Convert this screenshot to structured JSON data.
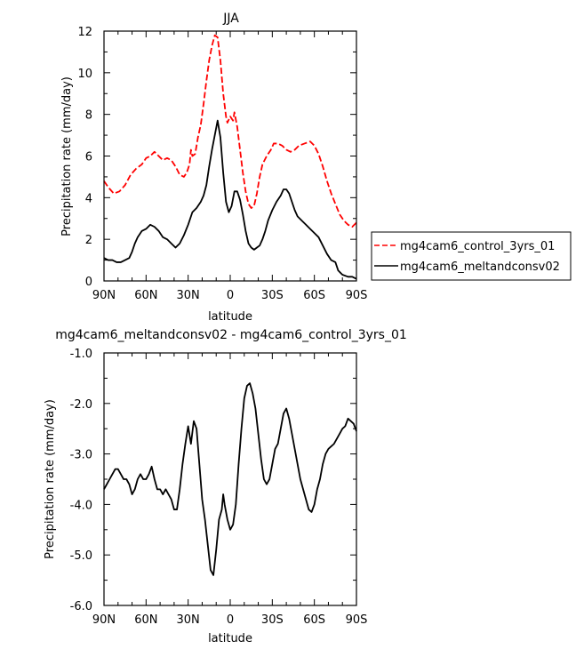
{
  "chart_data": [
    {
      "type": "line",
      "title": "JJA",
      "xlabel": "latitude",
      "ylabel": "Precipitation rate (mm/day)",
      "xlim": [
        90,
        -90
      ],
      "ylim": [
        0,
        12
      ],
      "x_ticks": [
        90,
        60,
        30,
        0,
        -30,
        -60,
        -90
      ],
      "x_tick_labels": [
        "90N",
        "60N",
        "30N",
        "0",
        "30S",
        "60S",
        "90S"
      ],
      "y_ticks": [
        0,
        2,
        4,
        6,
        8,
        10,
        12
      ],
      "y_tick_labels": [
        "0",
        "2",
        "4",
        "6",
        "8",
        "10",
        "12"
      ],
      "grid": false,
      "legend_position": "right",
      "series": [
        {
          "name": "mg4cam6_control_3yrs_01",
          "color": "#ff0000",
          "dash": "dashed",
          "points": [
            [
              90,
              4.8
            ],
            [
              87,
              4.5
            ],
            [
              83,
              4.2
            ],
            [
              79,
              4.3
            ],
            [
              75,
              4.6
            ],
            [
              71,
              5.1
            ],
            [
              67,
              5.4
            ],
            [
              63,
              5.6
            ],
            [
              60,
              5.9
            ],
            [
              57,
              6.0
            ],
            [
              54,
              6.2
            ],
            [
              51,
              6.0
            ],
            [
              48,
              5.8
            ],
            [
              45,
              5.9
            ],
            [
              42,
              5.8
            ],
            [
              39,
              5.5
            ],
            [
              36,
              5.1
            ],
            [
              33,
              5.0
            ],
            [
              31,
              5.2
            ],
            [
              29,
              5.6
            ],
            [
              28,
              6.3
            ],
            [
              27,
              6.0
            ],
            [
              25,
              6.1
            ],
            [
              23,
              6.9
            ],
            [
              21,
              7.5
            ],
            [
              19,
              8.5
            ],
            [
              17,
              9.6
            ],
            [
              15,
              10.6
            ],
            [
              13,
              11.3
            ],
            [
              11,
              11.8
            ],
            [
              9,
              11.7
            ],
            [
              7,
              10.6
            ],
            [
              5,
              9.0
            ],
            [
              3,
              7.9
            ],
            [
              2,
              7.6
            ],
            [
              0,
              7.9
            ],
            [
              -2,
              7.7
            ],
            [
              -3,
              8.1
            ],
            [
              -5,
              7.4
            ],
            [
              -7,
              6.3
            ],
            [
              -9,
              5.2
            ],
            [
              -11,
              4.3
            ],
            [
              -13,
              3.7
            ],
            [
              -15,
              3.5
            ],
            [
              -17,
              3.6
            ],
            [
              -19,
              4.2
            ],
            [
              -21,
              5.0
            ],
            [
              -23,
              5.6
            ],
            [
              -26,
              6.0
            ],
            [
              -29,
              6.3
            ],
            [
              -31,
              6.6
            ],
            [
              -34,
              6.6
            ],
            [
              -37,
              6.5
            ],
            [
              -40,
              6.3
            ],
            [
              -43,
              6.2
            ],
            [
              -46,
              6.3
            ],
            [
              -49,
              6.5
            ],
            [
              -53,
              6.6
            ],
            [
              -57,
              6.7
            ],
            [
              -60,
              6.5
            ],
            [
              -63,
              6.1
            ],
            [
              -66,
              5.5
            ],
            [
              -69,
              4.8
            ],
            [
              -72,
              4.2
            ],
            [
              -75,
              3.7
            ],
            [
              -78,
              3.2
            ],
            [
              -81,
              2.9
            ],
            [
              -84,
              2.7
            ],
            [
              -87,
              2.6
            ],
            [
              -90,
              2.8
            ]
          ]
        },
        {
          "name": "mg4cam6_meltandconsv02",
          "color": "#000000",
          "dash": "solid",
          "points": [
            [
              90,
              1.1
            ],
            [
              87,
              1.0
            ],
            [
              84,
              1.0
            ],
            [
              81,
              0.9
            ],
            [
              78,
              0.9
            ],
            [
              75,
              1.0
            ],
            [
              72,
              1.1
            ],
            [
              70,
              1.4
            ],
            [
              68,
              1.8
            ],
            [
              66,
              2.1
            ],
            [
              63,
              2.4
            ],
            [
              60,
              2.5
            ],
            [
              57,
              2.7
            ],
            [
              54,
              2.6
            ],
            [
              51,
              2.4
            ],
            [
              48,
              2.1
            ],
            [
              45,
              2.0
            ],
            [
              42,
              1.8
            ],
            [
              39,
              1.6
            ],
            [
              36,
              1.8
            ],
            [
              33,
              2.2
            ],
            [
              30,
              2.7
            ],
            [
              27,
              3.3
            ],
            [
              24,
              3.5
            ],
            [
              21,
              3.8
            ],
            [
              19,
              4.1
            ],
            [
              17,
              4.6
            ],
            [
              15,
              5.5
            ],
            [
              13,
              6.3
            ],
            [
              11,
              7.0
            ],
            [
              9,
              7.7
            ],
            [
              7,
              6.9
            ],
            [
              5,
              5.2
            ],
            [
              3,
              3.8
            ],
            [
              1,
              3.3
            ],
            [
              -1,
              3.6
            ],
            [
              -3,
              4.3
            ],
            [
              -5,
              4.3
            ],
            [
              -7,
              3.9
            ],
            [
              -9,
              3.2
            ],
            [
              -11,
              2.4
            ],
            [
              -13,
              1.8
            ],
            [
              -15,
              1.6
            ],
            [
              -17,
              1.5
            ],
            [
              -19,
              1.6
            ],
            [
              -21,
              1.7
            ],
            [
              -23,
              2.0
            ],
            [
              -25,
              2.4
            ],
            [
              -27,
              2.9
            ],
            [
              -30,
              3.4
            ],
            [
              -33,
              3.8
            ],
            [
              -36,
              4.1
            ],
            [
              -38,
              4.4
            ],
            [
              -40,
              4.4
            ],
            [
              -42,
              4.2
            ],
            [
              -44,
              3.8
            ],
            [
              -46,
              3.4
            ],
            [
              -48,
              3.1
            ],
            [
              -51,
              2.9
            ],
            [
              -54,
              2.7
            ],
            [
              -57,
              2.5
            ],
            [
              -60,
              2.3
            ],
            [
              -63,
              2.1
            ],
            [
              -66,
              1.7
            ],
            [
              -69,
              1.3
            ],
            [
              -72,
              1.0
            ],
            [
              -75,
              0.9
            ],
            [
              -77,
              0.5
            ],
            [
              -80,
              0.3
            ],
            [
              -84,
              0.2
            ],
            [
              -87,
              0.2
            ],
            [
              -90,
              0.1
            ]
          ]
        }
      ]
    },
    {
      "type": "line",
      "title": "mg4cam6_meltandconsv02 - mg4cam6_control_3yrs_01",
      "xlabel": "latitude",
      "ylabel": "Precipitation rate (mm/day)",
      "xlim": [
        90,
        -90
      ],
      "ylim": [
        -6.0,
        -1.0
      ],
      "x_ticks": [
        90,
        60,
        30,
        0,
        -30,
        -60,
        -90
      ],
      "x_tick_labels": [
        "90N",
        "60N",
        "30N",
        "0",
        "30S",
        "60S",
        "90S"
      ],
      "y_ticks": [
        -6.0,
        -5.0,
        -4.0,
        -3.0,
        -2.0,
        -1.0
      ],
      "y_tick_labels": [
        "-6.0",
        "-5.0",
        "-4.0",
        "-3.0",
        "-2.0",
        "-1.0"
      ],
      "grid": false,
      "series": [
        {
          "color": "#000000",
          "dash": "solid",
          "points": [
            [
              90,
              -3.7
            ],
            [
              88,
              -3.6
            ],
            [
              86,
              -3.5
            ],
            [
              84,
              -3.4
            ],
            [
              82,
              -3.3
            ],
            [
              80,
              -3.3
            ],
            [
              78,
              -3.4
            ],
            [
              76,
              -3.5
            ],
            [
              74,
              -3.5
            ],
            [
              72,
              -3.6
            ],
            [
              70,
              -3.8
            ],
            [
              68,
              -3.7
            ],
            [
              66,
              -3.5
            ],
            [
              64,
              -3.4
            ],
            [
              62,
              -3.5
            ],
            [
              60,
              -3.5
            ],
            [
              58,
              -3.4
            ],
            [
              56,
              -3.25
            ],
            [
              54,
              -3.5
            ],
            [
              52,
              -3.7
            ],
            [
              50,
              -3.7
            ],
            [
              48,
              -3.8
            ],
            [
              46,
              -3.7
            ],
            [
              44,
              -3.8
            ],
            [
              42,
              -3.9
            ],
            [
              40,
              -4.1
            ],
            [
              38,
              -4.1
            ],
            [
              36,
              -3.7
            ],
            [
              34,
              -3.2
            ],
            [
              32,
              -2.8
            ],
            [
              30,
              -2.45
            ],
            [
              28,
              -2.8
            ],
            [
              26,
              -2.35
            ],
            [
              24,
              -2.5
            ],
            [
              22,
              -3.2
            ],
            [
              20,
              -3.9
            ],
            [
              18,
              -4.3
            ],
            [
              16,
              -4.8
            ],
            [
              14,
              -5.3
            ],
            [
              12,
              -5.4
            ],
            [
              10,
              -4.9
            ],
            [
              8,
              -4.3
            ],
            [
              6,
              -4.1
            ],
            [
              5,
              -3.8
            ],
            [
              4,
              -4.0
            ],
            [
              2,
              -4.3
            ],
            [
              0,
              -4.5
            ],
            [
              -2,
              -4.4
            ],
            [
              -4,
              -4.0
            ],
            [
              -6,
              -3.2
            ],
            [
              -8,
              -2.5
            ],
            [
              -10,
              -1.9
            ],
            [
              -12,
              -1.65
            ],
            [
              -14,
              -1.6
            ],
            [
              -16,
              -1.8
            ],
            [
              -18,
              -2.1
            ],
            [
              -20,
              -2.6
            ],
            [
              -22,
              -3.1
            ],
            [
              -24,
              -3.5
            ],
            [
              -26,
              -3.6
            ],
            [
              -28,
              -3.5
            ],
            [
              -30,
              -3.2
            ],
            [
              -32,
              -2.9
            ],
            [
              -34,
              -2.8
            ],
            [
              -36,
              -2.5
            ],
            [
              -38,
              -2.2
            ],
            [
              -40,
              -2.1
            ],
            [
              -42,
              -2.3
            ],
            [
              -44,
              -2.6
            ],
            [
              -46,
              -2.9
            ],
            [
              -48,
              -3.2
            ],
            [
              -50,
              -3.5
            ],
            [
              -52,
              -3.7
            ],
            [
              -54,
              -3.9
            ],
            [
              -56,
              -4.1
            ],
            [
              -58,
              -4.15
            ],
            [
              -60,
              -4.0
            ],
            [
              -62,
              -3.7
            ],
            [
              -64,
              -3.5
            ],
            [
              -66,
              -3.2
            ],
            [
              -68,
              -3.0
            ],
            [
              -70,
              -2.9
            ],
            [
              -72,
              -2.85
            ],
            [
              -74,
              -2.8
            ],
            [
              -76,
              -2.7
            ],
            [
              -78,
              -2.6
            ],
            [
              -80,
              -2.5
            ],
            [
              -82,
              -2.45
            ],
            [
              -84,
              -2.3
            ],
            [
              -86,
              -2.35
            ],
            [
              -88,
              -2.4
            ],
            [
              -90,
              -2.55
            ]
          ]
        }
      ]
    }
  ]
}
